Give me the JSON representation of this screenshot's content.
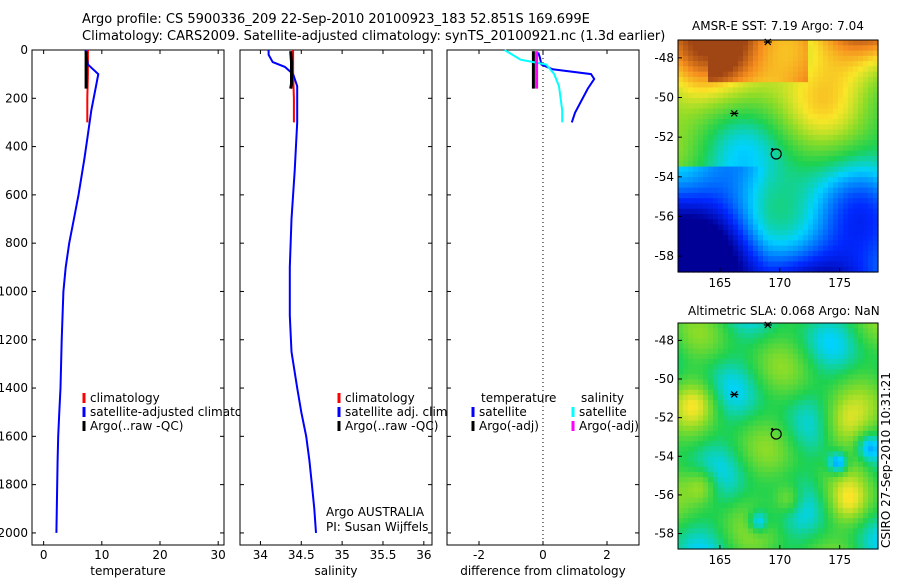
{
  "header": {
    "line1": "Argo profile: CS 5900336_209 22-Sep-2010 20100923_183 52.851S 169.699E",
    "line2": "Climatology: CARS2009. Satellite-adjusted climatology: synTS_20100921.nc (1.3d earlier)"
  },
  "colors": {
    "climatology": "#ff0000",
    "satellite": "#0000ff",
    "argo": "#000000",
    "satellite_salinity": "#00ffff",
    "argo_salinity": "#ff00ff"
  },
  "chart_data": [
    {
      "type": "line",
      "name": "temperature-profile",
      "xlabel": "temperature",
      "ylabel": "",
      "xlim": [
        -2,
        31
      ],
      "ylim": [
        0,
        2050
      ],
      "y_inverted": true,
      "xticks": [
        0,
        10,
        20,
        30
      ],
      "yticks": [
        0,
        200,
        400,
        600,
        800,
        1000,
        1200,
        1400,
        1600,
        1800,
        2000
      ],
      "series": [
        {
          "name": "climatology",
          "color_key": "climatology",
          "x": [
            7.6,
            7.6,
            7.5,
            7.5
          ],
          "y": [
            0,
            100,
            200,
            300
          ]
        },
        {
          "name": "satellite-adjusted climatology",
          "color_key": "satellite",
          "x": [
            7.2,
            7.6,
            8.5,
            9.4,
            9.0,
            8.2,
            7.6,
            7.0,
            6.0,
            5.2,
            4.4,
            3.8,
            3.4,
            3.1,
            2.9,
            2.7,
            2.5,
            2.4,
            2.3,
            2.2
          ],
          "y": [
            0,
            60,
            80,
            100,
            150,
            250,
            350,
            450,
            600,
            700,
            800,
            900,
            1000,
            1200,
            1400,
            1500,
            1600,
            1700,
            1850,
            2000
          ]
        },
        {
          "name": "Argo(..raw -QC)",
          "color_key": "argo",
          "x": [
            7.3,
            7.3,
            7.3,
            7.3,
            7.3
          ],
          "y": [
            5,
            50,
            100,
            140,
            160
          ]
        }
      ],
      "legend": {
        "position": "bottom-right",
        "entries": [
          "climatology",
          "satellite-adjusted climatology",
          "Argo(..raw -QC)"
        ]
      }
    },
    {
      "type": "line",
      "name": "salinity-profile",
      "xlabel": "salinity",
      "ylabel": "",
      "xlim": [
        33.75,
        36.1
      ],
      "ylim": [
        0,
        2050
      ],
      "y_inverted": true,
      "xticks": [
        34,
        34.5,
        35,
        35.5,
        36
      ],
      "series": [
        {
          "name": "climatology",
          "color_key": "climatology",
          "x": [
            34.4,
            34.4,
            34.41,
            34.41
          ],
          "y": [
            0,
            100,
            200,
            300
          ]
        },
        {
          "name": "satellite adj. clim.",
          "color_key": "satellite",
          "x": [
            34.1,
            34.1,
            34.15,
            34.3,
            34.4,
            34.45,
            34.45,
            34.42,
            34.38,
            34.36,
            34.36,
            34.38,
            34.45,
            34.5,
            34.56,
            34.6,
            34.63,
            34.66,
            34.68
          ],
          "y": [
            0,
            20,
            50,
            70,
            100,
            150,
            300,
            500,
            700,
            900,
            1100,
            1250,
            1400,
            1500,
            1600,
            1700,
            1800,
            1900,
            2000
          ]
        },
        {
          "name": "Argo(..raw -QC)",
          "color_key": "argo",
          "x": [
            34.37,
            34.38,
            34.38,
            34.38,
            34.37
          ],
          "y": [
            5,
            50,
            100,
            140,
            160
          ]
        }
      ],
      "legend": {
        "position": "bottom-right",
        "entries": [
          "climatology",
          "satellite adj. clim.",
          "Argo(..raw -QC)"
        ]
      },
      "annotation": [
        "Argo AUSTRALIA",
        "PI: Susan Wijffels"
      ]
    },
    {
      "type": "line",
      "name": "difference-profile",
      "xlabel": "difference from climatology",
      "ylabel": "",
      "xlim": [
        -3.0,
        3.0
      ],
      "ylim": [
        0,
        2050
      ],
      "y_inverted": true,
      "xticks": [
        -2,
        0,
        2
      ],
      "zero_line": "dotted",
      "series": [
        {
          "name": "temperature satellite",
          "color_key": "satellite",
          "x": [
            -0.15,
            -0.1,
            -0.05,
            0.3,
            1.5,
            1.6,
            1.4,
            1.0,
            0.9
          ],
          "y": [
            10,
            30,
            60,
            80,
            100,
            120,
            160,
            260,
            300
          ]
        },
        {
          "name": "temperature Argo(-adj)",
          "color_key": "argo",
          "x": [
            -0.3,
            -0.3,
            -0.3,
            -0.3
          ],
          "y": [
            5,
            60,
            110,
            160
          ]
        },
        {
          "name": "salinity satellite",
          "color_key": "satellite_salinity",
          "x": [
            -1.2,
            -0.7,
            0.1,
            0.35,
            0.5,
            0.6,
            0.6
          ],
          "y": [
            0,
            40,
            60,
            100,
            150,
            250,
            300
          ]
        },
        {
          "name": "salinity Argo(-adj)",
          "color_key": "argo_salinity",
          "x": [
            -0.2,
            -0.2,
            -0.2,
            -0.2
          ],
          "y": [
            5,
            60,
            110,
            160
          ]
        }
      ],
      "legend": {
        "position": "bottom-left",
        "col_titles": [
          "temperature",
          "salinity"
        ],
        "entries": [
          "satellite",
          "Argo(-adj)",
          "satellite",
          "Argo(-adj)"
        ]
      }
    },
    {
      "type": "heatmap",
      "name": "sst-map",
      "title": "AMSR-E SST: 7.19 Argo: 7.04",
      "xticks": [
        165,
        170,
        175
      ],
      "yticks": [
        -48,
        -50,
        -52,
        -54,
        -56,
        -58
      ],
      "xlim": [
        161.5,
        178.2
      ],
      "ylim": [
        -58.8,
        -47.1
      ],
      "markers": [
        {
          "kind": "circle",
          "lon": 169.7,
          "lat": -52.85
        },
        {
          "kind": "star",
          "lon": 166.2,
          "lat": -50.8
        },
        {
          "kind": "star",
          "lon": 169.0,
          "lat": -47.2
        }
      ]
    },
    {
      "type": "heatmap",
      "name": "sla-map",
      "title": "Altimetric SLA: 0.068 Argo: NaN",
      "xticks": [
        165,
        170,
        175
      ],
      "yticks": [
        -48,
        -50,
        -52,
        -54,
        -56,
        -58
      ],
      "xlim": [
        161.5,
        178.2
      ],
      "ylim": [
        -58.8,
        -47.1
      ],
      "markers": [
        {
          "kind": "circle",
          "lon": 169.7,
          "lat": -52.85
        },
        {
          "kind": "star",
          "lon": 166.2,
          "lat": -50.8
        },
        {
          "kind": "star",
          "lon": 169.0,
          "lat": -47.2
        }
      ]
    }
  ],
  "credit": "CSIRO 27-Sep-2010 10:31:21"
}
